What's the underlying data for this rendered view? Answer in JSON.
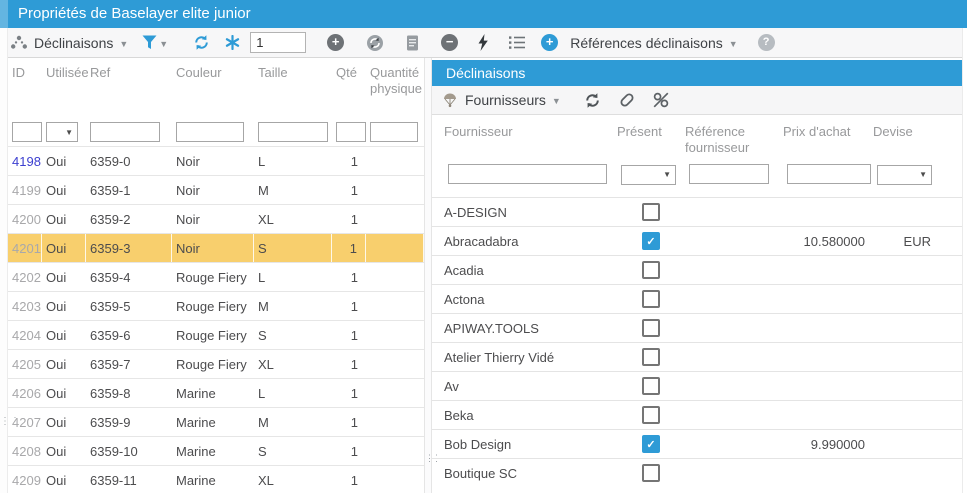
{
  "window": {
    "title": "Propriétés de Baselayer elite junior"
  },
  "toolbar": {
    "entity_label": "Déclinaisons",
    "record_index_value": "1",
    "references_label": "Références déclinaisons"
  },
  "icons": {
    "add": "+",
    "remove": "−",
    "help": "?",
    "caret": "▼",
    "dropdown": "▼",
    "check": "✓"
  },
  "left_grid": {
    "columns": [
      "ID",
      "Utilisée",
      "Ref",
      "Couleur",
      "Taille",
      "Qté",
      "Quantité physique"
    ],
    "filters": [
      "",
      "",
      "",
      "",
      "",
      "",
      ""
    ],
    "selected_id": "4201",
    "rows": [
      {
        "id": "4198",
        "id_link": true,
        "utilisee": "Oui",
        "ref": "6359-0",
        "couleur": "Noir",
        "taille": "L",
        "qte": "1",
        "qte_physique": ""
      },
      {
        "id": "4199",
        "id_link": false,
        "utilisee": "Oui",
        "ref": "6359-1",
        "couleur": "Noir",
        "taille": "M",
        "qte": "1",
        "qte_physique": ""
      },
      {
        "id": "4200",
        "id_link": false,
        "utilisee": "Oui",
        "ref": "6359-2",
        "couleur": "Noir",
        "taille": "XL",
        "qte": "1",
        "qte_physique": ""
      },
      {
        "id": "4201",
        "id_link": false,
        "utilisee": "Oui",
        "ref": "6359-3",
        "couleur": "Noir",
        "taille": "S",
        "qte": "1",
        "qte_physique": ""
      },
      {
        "id": "4202",
        "id_link": false,
        "utilisee": "Oui",
        "ref": "6359-4",
        "couleur": "Rouge Fiery",
        "taille": "L",
        "qte": "1",
        "qte_physique": ""
      },
      {
        "id": "4203",
        "id_link": false,
        "utilisee": "Oui",
        "ref": "6359-5",
        "couleur": "Rouge Fiery",
        "taille": "M",
        "qte": "1",
        "qte_physique": ""
      },
      {
        "id": "4204",
        "id_link": false,
        "utilisee": "Oui",
        "ref": "6359-6",
        "couleur": "Rouge Fiery",
        "taille": "S",
        "qte": "1",
        "qte_physique": ""
      },
      {
        "id": "4205",
        "id_link": false,
        "utilisee": "Oui",
        "ref": "6359-7",
        "couleur": "Rouge Fiery",
        "taille": "XL",
        "qte": "1",
        "qte_physique": ""
      },
      {
        "id": "4206",
        "id_link": false,
        "utilisee": "Oui",
        "ref": "6359-8",
        "couleur": "Marine",
        "taille": "L",
        "qte": "1",
        "qte_physique": ""
      },
      {
        "id": "4207",
        "id_link": false,
        "utilisee": "Oui",
        "ref": "6359-9",
        "couleur": "Marine",
        "taille": "M",
        "qte": "1",
        "qte_physique": ""
      },
      {
        "id": "4208",
        "id_link": false,
        "utilisee": "Oui",
        "ref": "6359-10",
        "couleur": "Marine",
        "taille": "S",
        "qte": "1",
        "qte_physique": ""
      },
      {
        "id": "4209",
        "id_link": false,
        "utilisee": "Oui",
        "ref": "6359-11",
        "couleur": "Marine",
        "taille": "XL",
        "qte": "1",
        "qte_physique": ""
      }
    ]
  },
  "right_panel": {
    "title": "Déclinaisons",
    "toolbar": {
      "label": "Fournisseurs"
    },
    "columns": [
      "Fournisseur",
      "Présent",
      "Référence fournisseur",
      "Prix d'achat",
      "Devise"
    ],
    "filters": [
      "",
      "",
      "",
      "",
      ""
    ],
    "rows": [
      {
        "fournisseur": "A-DESIGN",
        "present": false,
        "reference": "",
        "prix": "",
        "devise": ""
      },
      {
        "fournisseur": "Abracadabra",
        "present": true,
        "reference": "",
        "prix": "10.580000",
        "devise": "EUR"
      },
      {
        "fournisseur": "Acadia",
        "present": false,
        "reference": "",
        "prix": "",
        "devise": ""
      },
      {
        "fournisseur": "Actona",
        "present": false,
        "reference": "",
        "prix": "",
        "devise": ""
      },
      {
        "fournisseur": "APIWAY.TOOLS",
        "present": false,
        "reference": "",
        "prix": "",
        "devise": ""
      },
      {
        "fournisseur": "Atelier Thierry Vidé",
        "present": false,
        "reference": "",
        "prix": "",
        "devise": ""
      },
      {
        "fournisseur": "Av",
        "present": false,
        "reference": "",
        "prix": "",
        "devise": ""
      },
      {
        "fournisseur": "Beka",
        "present": false,
        "reference": "",
        "prix": "",
        "devise": ""
      },
      {
        "fournisseur": "Bob Design",
        "present": true,
        "reference": "",
        "prix": "9.990000",
        "devise": ""
      },
      {
        "fournisseur": "Boutique SC",
        "present": false,
        "reference": "",
        "prix": "",
        "devise": ""
      }
    ]
  },
  "colors": {
    "accent": "#2e9bd6",
    "selected_row": "#f8cf6d"
  }
}
